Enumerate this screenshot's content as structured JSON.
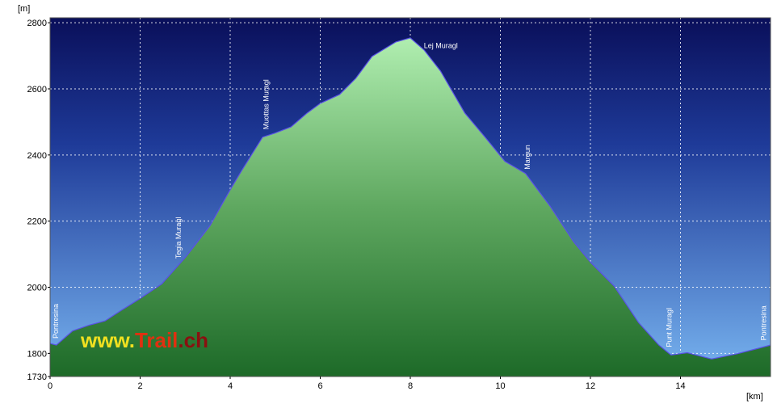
{
  "chart_data": {
    "type": "area",
    "y_label": "[m]",
    "x_label": "[km]",
    "xlim": [
      0,
      16
    ],
    "ylim": [
      1730,
      2815
    ],
    "xticks": [
      0,
      2,
      4,
      6,
      8,
      10,
      12,
      14
    ],
    "yticks": [
      1730,
      1800,
      2000,
      2200,
      2400,
      2600,
      2800
    ],
    "grid": true,
    "line_color": "#5a50e6",
    "x": [
      0,
      0.14,
      0.5,
      0.86,
      1.22,
      1.58,
      2.0,
      2.48,
      3.02,
      3.55,
      4.0,
      4.27,
      4.72,
      4.99,
      5.35,
      5.71,
      6.0,
      6.43,
      6.79,
      7.15,
      7.68,
      8.0,
      8.31,
      8.67,
      9.21,
      9.66,
      10.1,
      10.56,
      11.1,
      11.63,
      12.0,
      12.53,
      13.07,
      13.52,
      13.79,
      14.15,
      14.69,
      15.23,
      15.58,
      16.0
    ],
    "y": [
      1830,
      1825,
      1868,
      1885,
      1898,
      1930,
      1966,
      2010,
      2093,
      2186,
      2295,
      2356,
      2454,
      2466,
      2485,
      2527,
      2556,
      2583,
      2632,
      2698,
      2742,
      2754,
      2717,
      2654,
      2527,
      2454,
      2381,
      2344,
      2246,
      2137,
      2076,
      2003,
      1893,
      1825,
      1795,
      1802,
      1783,
      1798,
      1810,
      1825
    ],
    "annotations": [
      {
        "text": "Pontresina",
        "x": 0.13
      },
      {
        "text": "Tegia Muragl",
        "x": 2.85
      },
      {
        "text": "Muottas Muragl",
        "x": 4.8
      },
      {
        "text": "Lej Muragl",
        "x": 8.3,
        "horizontal": true
      },
      {
        "text": "Margun",
        "x": 10.6
      },
      {
        "text": "Punt Muragl",
        "x": 13.75
      },
      {
        "text": "Pontresina",
        "x": 15.85
      }
    ],
    "watermark": [
      "www.",
      "Trail",
      ".ch"
    ]
  }
}
